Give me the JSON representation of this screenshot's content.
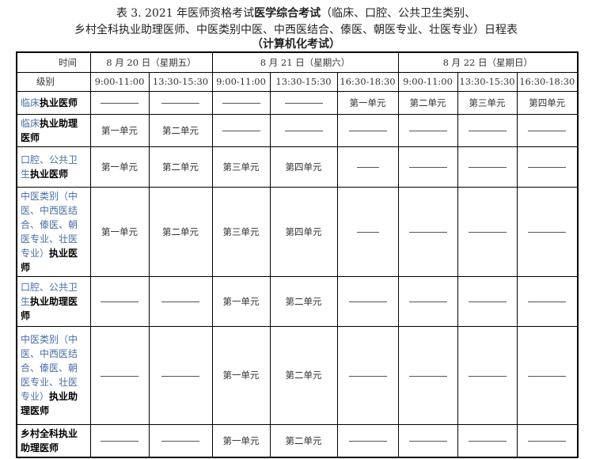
{
  "title": {
    "line1_a": "表 3.  2021 年医师资格考试",
    "line1_b": "医学综合考试",
    "line1_c": "（临床、口腔、公共卫生类别、",
    "line2": "乡村全科执业助理医师、中医类别中医、中西医结合、傣医、朝医专业、壮医专业）日程表",
    "line3": "（计算机化考试）"
  },
  "header": {
    "time": "时间",
    "level": "级别",
    "dates": [
      "8 月 20 日（星期五）",
      "8 月 21 日（星期六）",
      "8 月 22 日（星期日）"
    ],
    "slots": [
      "9:00-11:00",
      "13:30-15:30",
      "9:00-11:00",
      "13:30-15:30",
      "16:30-18:30",
      "9:00-11:00",
      "13:30-15:30",
      "16:30-18:30"
    ]
  },
  "dash": "————",
  "rows": [
    {
      "label_plain": "临床",
      "label_bold": "执业医师",
      "cells": [
        "—",
        "—",
        "—",
        "—",
        "第一单元",
        "第二单元",
        "第三单元",
        "第四单元"
      ]
    },
    {
      "label_plain": "临床",
      "label_bold": "执业助理医师",
      "cells": [
        "第一单元",
        "第二单元",
        "—",
        "—",
        "—",
        "—",
        "—",
        "—"
      ]
    },
    {
      "label_plain": "口腔、公共卫生",
      "label_bold": "执业医师",
      "cells": [
        "第一单元",
        "第二单元",
        "第三单元",
        "第四单元",
        "—",
        "—",
        "—",
        "—"
      ]
    },
    {
      "label_plain": "中医类别（中医、中西医结合、傣医、朝医专业、壮医专业）",
      "label_bold": "执业医师",
      "cells": [
        "第一单元",
        "第二单元",
        "第三单元",
        "第四单元",
        "—",
        "—",
        "—",
        "—"
      ]
    },
    {
      "label_plain": "口腔、公共卫生",
      "label_bold": "执业助理医师",
      "cells": [
        "—",
        "—",
        "第一单元",
        "第二单元",
        "—",
        "—",
        "—",
        "—"
      ]
    },
    {
      "label_plain": "中医类别（中医、中西医结合、傣医、朝医专业、壮医专业）",
      "label_bold": "执业助理医师",
      "cells": [
        "—",
        "—",
        "第一单元",
        "第二单元",
        "—",
        "—",
        "—",
        "—"
      ]
    },
    {
      "label_plain": "",
      "label_bold": "乡村全科执业助理医师",
      "cells": [
        "—",
        "—",
        "第一单元",
        "第二单元",
        "—",
        "—",
        "—",
        "—"
      ]
    }
  ]
}
